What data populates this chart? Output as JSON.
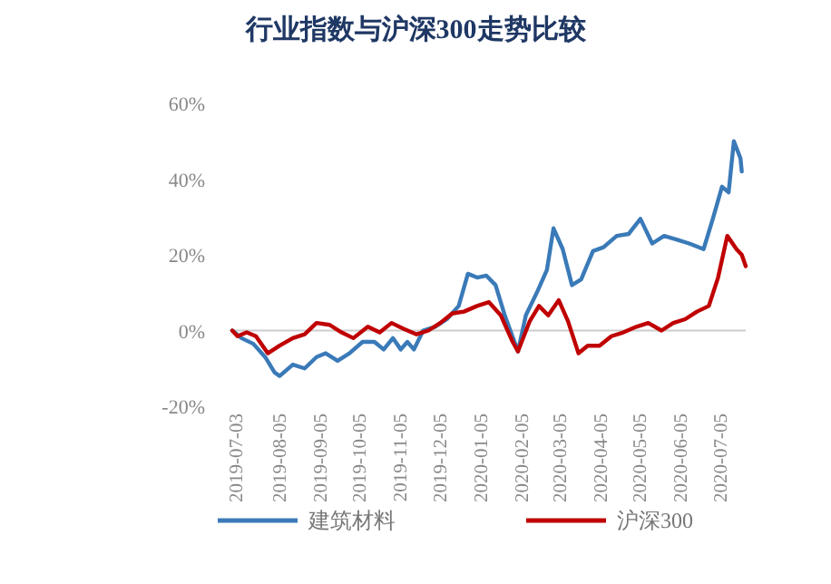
{
  "chart_data": {
    "type": "line",
    "title": "行业指数与沪深300走势比较",
    "xlim": [
      "2019-07-01",
      "2020-07-25"
    ],
    "xticks": [
      {
        "value": "2019-07-03",
        "label": "2019-07-03"
      },
      {
        "value": "2019-08-05",
        "label": "2019-08-05"
      },
      {
        "value": "2019-09-05",
        "label": "2019-09-05"
      },
      {
        "value": "2019-10-05",
        "label": "2019-10-05"
      },
      {
        "value": "2019-11-05",
        "label": "2019-11-05"
      },
      {
        "value": "2019-12-05",
        "label": "2019-12-05"
      },
      {
        "value": "2020-01-05",
        "label": "2020-01-05"
      },
      {
        "value": "2020-02-05",
        "label": "2020-02-05"
      },
      {
        "value": "2020-03-05",
        "label": "2020-03-05"
      },
      {
        "value": "2020-04-05",
        "label": "2020-04-05"
      },
      {
        "value": "2020-05-05",
        "label": "2020-05-05"
      },
      {
        "value": "2020-06-05",
        "label": "2020-06-05"
      },
      {
        "value": "2020-07-05",
        "label": "2020-07-05"
      }
    ],
    "ylim": [
      -20,
      60
    ],
    "yticks": [
      {
        "value": -20,
        "label": "-20%"
      },
      {
        "value": 0,
        "label": "0%"
      },
      {
        "value": 20,
        "label": "20%"
      },
      {
        "value": 40,
        "label": "40%"
      },
      {
        "value": 60,
        "label": "60%"
      }
    ],
    "ref_lines": [
      {
        "axis": "y",
        "value": 0,
        "color": "#cccccc"
      }
    ],
    "legend": "bottom",
    "grid": false,
    "series": [
      {
        "name": "建筑材料",
        "color": "#3a7ab8",
        "x": [
          "2019-07-01",
          "2019-07-08",
          "2019-07-17",
          "2019-07-26",
          "2019-08-02",
          "2019-08-06",
          "2019-08-16",
          "2019-08-25",
          "2019-09-03",
          "2019-09-10",
          "2019-09-19",
          "2019-09-28",
          "2019-10-08",
          "2019-10-17",
          "2019-10-24",
          "2019-10-31",
          "2019-11-06",
          "2019-11-11",
          "2019-11-16",
          "2019-11-23",
          "2019-12-02",
          "2019-12-11",
          "2019-12-20",
          "2019-12-27",
          "2020-01-03",
          "2020-01-10",
          "2020-01-17",
          "2020-01-24",
          "2020-02-03",
          "2020-02-09",
          "2020-02-18",
          "2020-02-25",
          "2020-03-01",
          "2020-03-08",
          "2020-03-15",
          "2020-03-22",
          "2020-03-31",
          "2020-04-08",
          "2020-04-18",
          "2020-04-27",
          "2020-05-06",
          "2020-05-15",
          "2020-05-24",
          "2020-06-03",
          "2020-06-12",
          "2020-06-23",
          "2020-06-30",
          "2020-07-07",
          "2020-07-12",
          "2020-07-16",
          "2020-07-21",
          "2020-07-22"
        ],
        "values": [
          0,
          -2,
          -3.5,
          -7,
          -11,
          -12,
          -9,
          -10,
          -7,
          -6,
          -8,
          -6,
          -3,
          -3,
          -5,
          -2,
          -5,
          -3,
          -5,
          0,
          1,
          3,
          6.5,
          15,
          14,
          14.5,
          12,
          4,
          -5.5,
          4,
          10.5,
          16,
          27,
          21.5,
          12,
          13.5,
          21,
          22,
          25,
          25.5,
          29.5,
          23,
          25,
          24,
          23,
          21.5,
          29.5,
          38,
          36.5,
          50,
          45.5,
          42
        ]
      },
      {
        "name": "沪深300",
        "color": "#c00000",
        "x": [
          "2019-07-01",
          "2019-07-05",
          "2019-07-12",
          "2019-07-19",
          "2019-07-28",
          "2019-08-06",
          "2019-08-16",
          "2019-08-25",
          "2019-09-03",
          "2019-09-13",
          "2019-09-22",
          "2019-10-01",
          "2019-10-12",
          "2019-10-21",
          "2019-10-30",
          "2019-11-08",
          "2019-11-18",
          "2019-11-27",
          "2019-12-06",
          "2019-12-15",
          "2019-12-24",
          "2020-01-03",
          "2020-01-12",
          "2020-01-21",
          "2020-01-30",
          "2020-02-03",
          "2020-02-12",
          "2020-02-19",
          "2020-02-26",
          "2020-03-05",
          "2020-03-12",
          "2020-03-20",
          "2020-03-27",
          "2020-04-05",
          "2020-04-14",
          "2020-04-23",
          "2020-05-03",
          "2020-05-12",
          "2020-05-22",
          "2020-05-31",
          "2020-06-09",
          "2020-06-18",
          "2020-06-27",
          "2020-07-04",
          "2020-07-11",
          "2020-07-18",
          "2020-07-22",
          "2020-07-25"
        ],
        "values": [
          0,
          -1.5,
          -0.5,
          -1.5,
          -6,
          -4,
          -2,
          -1,
          2,
          1.5,
          -0.5,
          -2,
          1,
          -0.5,
          2,
          0.5,
          -1,
          0,
          2,
          4.5,
          5,
          6.5,
          7.5,
          4,
          -3,
          -5.5,
          2.5,
          6.5,
          4,
          8,
          2.5,
          -6,
          -4,
          -4,
          -1.5,
          -0.5,
          1,
          2,
          0,
          2,
          3,
          5,
          6.5,
          14,
          25,
          21.5,
          20,
          17
        ]
      }
    ]
  }
}
